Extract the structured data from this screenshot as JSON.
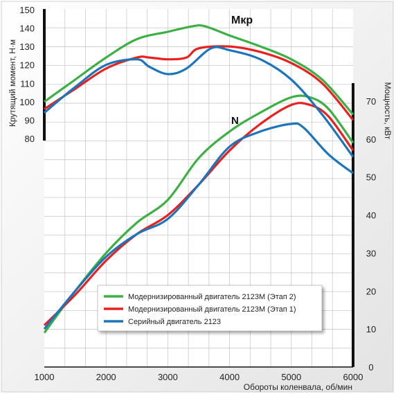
{
  "chart_data": {
    "type": "line",
    "xlabel": "Обороты коленвала, об/мин",
    "ylabel_left": "Крутящий момент, Н·м",
    "ylabel_right": "Мощность, кВт",
    "x_ticks": [
      "1000",
      "2000",
      "3000",
      "4000",
      "5000",
      "6000"
    ],
    "y_left_ticks": [
      "80",
      "90",
      "100",
      "110",
      "120",
      "130",
      "140",
      "150"
    ],
    "y_right_ticks": [
      "0",
      "10",
      "20",
      "30",
      "40",
      "50",
      "60",
      "70"
    ],
    "xlim": [
      1000,
      6000
    ],
    "ylim_left": [
      55,
      150
    ],
    "ylim_right": [
      0,
      90
    ],
    "grid": true,
    "legend_position": "bottom-center",
    "annotations": {
      "torque_label": "Мкр",
      "power_label": "N"
    },
    "series": [
      {
        "name": "Модернизированный двигатель 2123М (Этап 2)",
        "color": "#3cb043",
        "torque": [
          [
            1000,
            100
          ],
          [
            1500,
            112
          ],
          [
            2000,
            124
          ],
          [
            2500,
            134
          ],
          [
            3000,
            138
          ],
          [
            3400,
            141
          ],
          [
            3600,
            141
          ],
          [
            4000,
            136
          ],
          [
            4500,
            130
          ],
          [
            5000,
            123
          ],
          [
            5500,
            112
          ],
          [
            6000,
            93
          ]
        ],
        "power": [
          [
            1000,
            9
          ],
          [
            1500,
            20
          ],
          [
            2000,
            30
          ],
          [
            2500,
            38
          ],
          [
            3000,
            44
          ],
          [
            3500,
            55
          ],
          [
            4000,
            62
          ],
          [
            4500,
            67
          ],
          [
            5000,
            71
          ],
          [
            5300,
            71
          ],
          [
            5600,
            68
          ],
          [
            6000,
            59
          ]
        ]
      },
      {
        "name": "Модернизированный двигатель 2123М (Этап 1)",
        "color": "#e8211f",
        "torque": [
          [
            1000,
            96
          ],
          [
            1500,
            107
          ],
          [
            2000,
            118
          ],
          [
            2500,
            124
          ],
          [
            2700,
            124
          ],
          [
            3000,
            123
          ],
          [
            3300,
            124
          ],
          [
            3500,
            129
          ],
          [
            4000,
            130
          ],
          [
            4500,
            127
          ],
          [
            5000,
            121
          ],
          [
            5500,
            110
          ],
          [
            6000,
            90
          ]
        ],
        "power": [
          [
            1000,
            11
          ],
          [
            1500,
            19
          ],
          [
            2000,
            28
          ],
          [
            2500,
            35
          ],
          [
            3000,
            40
          ],
          [
            3500,
            48
          ],
          [
            4000,
            57
          ],
          [
            4500,
            64
          ],
          [
            5000,
            69
          ],
          [
            5300,
            69
          ],
          [
            5600,
            66
          ],
          [
            6000,
            57
          ]
        ]
      },
      {
        "name": "Серийный двигатель 2123",
        "color": "#1b75bc",
        "torque": [
          [
            1000,
            94
          ],
          [
            1500,
            108
          ],
          [
            2000,
            120
          ],
          [
            2500,
            123
          ],
          [
            2700,
            119
          ],
          [
            3000,
            115
          ],
          [
            3300,
            118
          ],
          [
            3700,
            129
          ],
          [
            4000,
            128
          ],
          [
            4500,
            123
          ],
          [
            5000,
            112
          ],
          [
            5500,
            93
          ],
          [
            6000,
            70
          ]
        ],
        "power": [
          [
            1000,
            10
          ],
          [
            1500,
            20
          ],
          [
            2000,
            29
          ],
          [
            2500,
            35
          ],
          [
            3000,
            39
          ],
          [
            3500,
            48
          ],
          [
            4000,
            58
          ],
          [
            4500,
            62
          ],
          [
            5000,
            64
          ],
          [
            5200,
            63
          ],
          [
            5600,
            56
          ],
          [
            6000,
            51
          ]
        ]
      }
    ]
  }
}
